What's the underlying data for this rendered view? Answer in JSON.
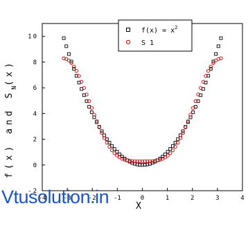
{
  "chart_data": {
    "type": "scatter",
    "xlabel": "X",
    "ylabel_parts": [
      "f(x) and S",
      "N",
      "(x)"
    ],
    "xlim": [
      -4,
      4
    ],
    "ylim": [
      -2,
      11
    ],
    "x_ticks": [
      "-4",
      "-3",
      "-2",
      "-1",
      "0",
      "1",
      "2",
      "3",
      "4"
    ],
    "y_ticks": [
      "-2",
      "0",
      "2",
      "4",
      "6",
      "8",
      "10"
    ],
    "x_tick_values": [
      -4,
      -3,
      -2,
      -1,
      0,
      1,
      2,
      3,
      4
    ],
    "y_tick_values": [
      -2,
      0,
      2,
      4,
      6,
      8,
      10
    ],
    "legend_position": "top-right",
    "series": [
      {
        "name": "f(x) = x²",
        "legend_label": "f(x) = x",
        "legend_superscript": "2",
        "marker": "square",
        "color": "#000000",
        "function": "x^2",
        "x_range": [
          -3.14,
          3.14
        ],
        "points": 63
      },
      {
        "name": "S 1",
        "legend_label": "S 1",
        "marker": "circle",
        "color": "#cc0000",
        "function": "3.2899 - 4cos(x) + cos(2x)",
        "x_range": [
          -3.14,
          3.14
        ],
        "points": 63
      }
    ]
  },
  "watermark": {
    "text": "Vtusolution.in",
    "color": "#1c54c4"
  }
}
